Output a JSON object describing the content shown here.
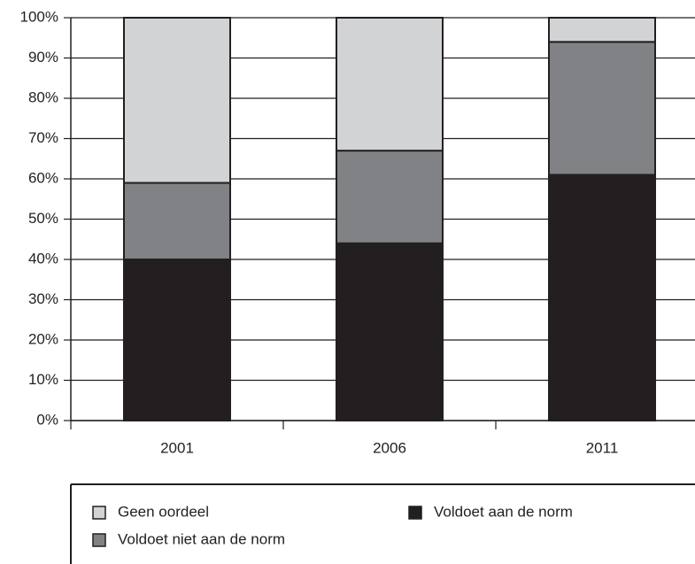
{
  "chart_data": {
    "type": "stacked_bar",
    "categories": [
      "2001",
      "2006",
      "2011"
    ],
    "series": [
      {
        "name": "Voldoet aan de norm",
        "color": "#231f20",
        "values": [
          40,
          44,
          61
        ]
      },
      {
        "name": "Voldoet niet aan de norm",
        "color": "#808285",
        "values": [
          19,
          23,
          33
        ]
      },
      {
        "name": "Geen oordeel",
        "color": "#d1d3d4",
        "values": [
          41,
          33,
          6
        ]
      }
    ],
    "ylim": [
      0,
      100
    ],
    "yticks": [
      {
        "value": 0,
        "label": "0%"
      },
      {
        "value": 10,
        "label": "10%"
      },
      {
        "value": 20,
        "label": "20%"
      },
      {
        "value": 30,
        "label": "30%"
      },
      {
        "value": 40,
        "label": "40%"
      },
      {
        "value": 50,
        "label": "50%"
      },
      {
        "value": 60,
        "label": "60%"
      },
      {
        "value": 70,
        "label": "70%"
      },
      {
        "value": 80,
        "label": "80%"
      },
      {
        "value": 90,
        "label": "90%"
      },
      {
        "value": 100,
        "label": "100%"
      }
    ],
    "grid": true
  }
}
